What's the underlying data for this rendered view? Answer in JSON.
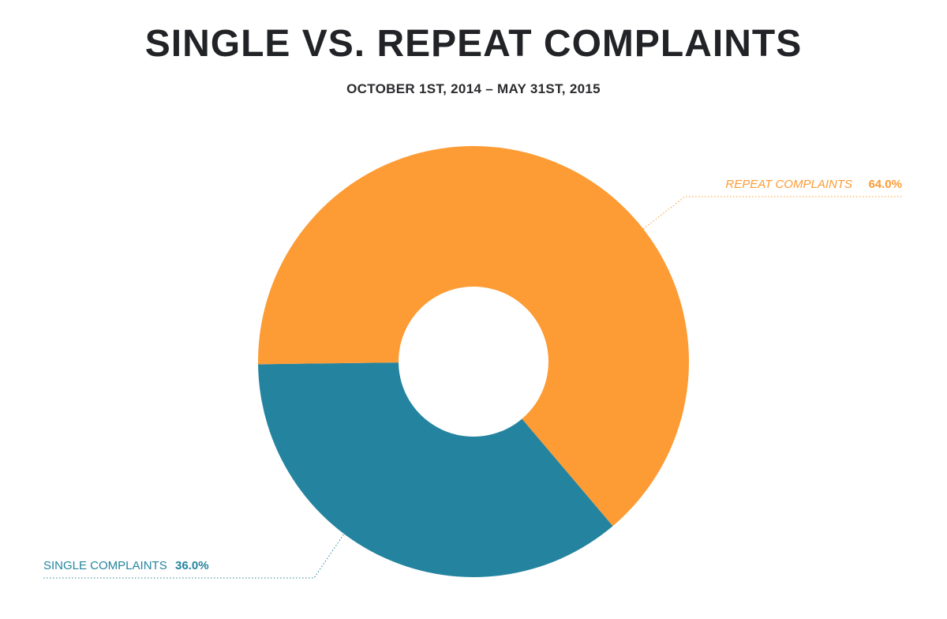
{
  "chart_data": {
    "type": "pie",
    "title": "SINGLE VS. REPEAT COMPLAINTS",
    "subtitle": "OCTOBER 1ST, 2014 – MAY 31ST, 2015",
    "donut": true,
    "slices": [
      {
        "label": "SINGLE COMPLAINTS",
        "value": 36.0,
        "value_label": "36.0%",
        "color": "#24849f",
        "label_side": "bottom-left",
        "label_italic": false
      },
      {
        "label": "REPEAT COMPLAINTS",
        "value": 64.0,
        "value_label": "64.0%",
        "color": "#fd9b34",
        "label_side": "top-right",
        "label_italic": true
      }
    ],
    "background": "#ffffff"
  }
}
